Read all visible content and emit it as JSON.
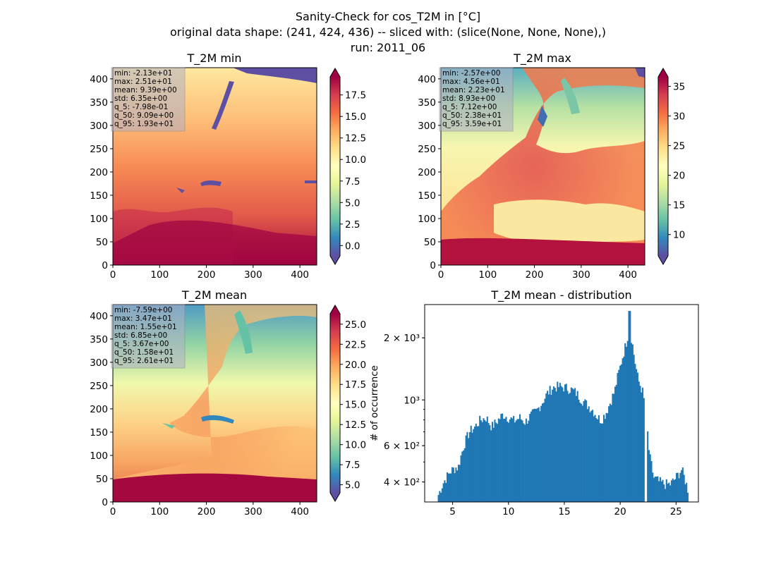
{
  "suptitle": [
    "Sanity-Check for cos_T2M in [°C]",
    "original data shape: (241, 424, 436) -- sliced with: (slice(None, None, None),)",
    "run: 2011_06"
  ],
  "chart_data": [
    {
      "type": "heatmap",
      "title": "T_2M min",
      "xlim": [
        0,
        436
      ],
      "ylim": [
        0,
        424
      ],
      "xticks": [
        0,
        100,
        200,
        300,
        400
      ],
      "yticks": [
        0,
        50,
        100,
        150,
        200,
        250,
        300,
        350,
        400
      ],
      "colormap": "Spectral_r",
      "colorbar": {
        "range": [
          -1.2,
          19.6
        ],
        "ticks": [
          "0.0",
          "2.5",
          "5.0",
          "7.5",
          "10.0",
          "12.5",
          "15.0",
          "17.5"
        ],
        "values": [
          0,
          2.5,
          5,
          7.5,
          10,
          12.5,
          15,
          17.5
        ]
      },
      "stats": [
        "min: -2.13e+01",
        "max: 2.51e+01",
        "mean: 9.39e+00",
        "std: 6.35e+00",
        "q_5: -7.98e-01",
        "q_50: 9.09e+00",
        "q_95: 1.93e+01"
      ]
    },
    {
      "type": "heatmap",
      "title": "T_2M max",
      "xlim": [
        0,
        436
      ],
      "ylim": [
        0,
        424
      ],
      "xticks": [
        0,
        100,
        200,
        300,
        400
      ],
      "yticks": [
        0,
        50,
        100,
        150,
        200,
        250,
        300,
        350,
        400
      ],
      "colormap": "Spectral_r",
      "colorbar": {
        "range": [
          6.4,
          36.6
        ],
        "ticks": [
          "10",
          "15",
          "20",
          "25",
          "30",
          "35"
        ],
        "values": [
          10,
          15,
          20,
          25,
          30,
          35
        ]
      },
      "stats": [
        "min: -2.57e+00",
        "max: 4.56e+01",
        "mean: 2.23e+01",
        "std: 8.93e+00",
        "q_5: 7.12e+00",
        "q_50: 2.38e+01",
        "q_95: 3.59e+01"
      ]
    },
    {
      "type": "heatmap",
      "title": "T_2M mean",
      "xlim": [
        0,
        436
      ],
      "ylim": [
        0,
        424
      ],
      "xticks": [
        0,
        100,
        200,
        300,
        400
      ],
      "yticks": [
        0,
        50,
        100,
        150,
        200,
        250,
        300,
        350,
        400
      ],
      "colormap": "Spectral_r",
      "colorbar": {
        "range": [
          4.0,
          26.3
        ],
        "ticks": [
          "5.0",
          "7.5",
          "10.0",
          "12.5",
          "15.0",
          "17.5",
          "20.0",
          "22.5",
          "25.0"
        ],
        "values": [
          5,
          7.5,
          10,
          12.5,
          15,
          17.5,
          20,
          22.5,
          25
        ]
      },
      "stats": [
        "min: -7.59e+00",
        "max: 3.47e+01",
        "mean: 1.55e+01",
        "std: 6.85e+00",
        "q_5: 3.67e+00",
        "q_50: 1.58e+01",
        "q_95: 2.61e+01"
      ]
    },
    {
      "type": "bar",
      "title": "T_2M mean - distribution",
      "ylabel": "# of occurrence",
      "yscale": "log",
      "xlim": [
        2.5,
        27.0
      ],
      "ylim": [
        320,
        2900
      ],
      "xticks": [
        5,
        10,
        15,
        20,
        25
      ],
      "yticks": [
        {
          "value": 400,
          "label": "4 × 10²"
        },
        {
          "value": 600,
          "label": "6 × 10²"
        },
        {
          "value": 1000,
          "label": "10³"
        },
        {
          "value": 2000,
          "label": "2 × 10³"
        }
      ],
      "color": "#1f77b4",
      "bins": {
        "start": 3.67,
        "end": 26.1,
        "count": 200
      },
      "anchors": [
        [
          3.67,
          340
        ],
        [
          4.2,
          400
        ],
        [
          4.8,
          450
        ],
        [
          5.3,
          470
        ],
        [
          5.5,
          470
        ],
        [
          6.0,
          600
        ],
        [
          6.5,
          700
        ],
        [
          7.0,
          740
        ],
        [
          7.5,
          800
        ],
        [
          8.0,
          820
        ],
        [
          8.5,
          740
        ],
        [
          9.0,
          790
        ],
        [
          9.5,
          850
        ],
        [
          10.0,
          820
        ],
        [
          10.5,
          790
        ],
        [
          11.0,
          820
        ],
        [
          11.5,
          780
        ],
        [
          12.0,
          840
        ],
        [
          12.5,
          880
        ],
        [
          13.0,
          970
        ],
        [
          13.5,
          1080
        ],
        [
          14.0,
          1150
        ],
        [
          14.5,
          1160
        ],
        [
          15.0,
          1150
        ],
        [
          15.5,
          1130
        ],
        [
          16.0,
          1090
        ],
        [
          16.5,
          1010
        ],
        [
          17.0,
          950
        ],
        [
          17.5,
          900
        ],
        [
          18.0,
          820
        ],
        [
          18.3,
          800
        ],
        [
          18.7,
          860
        ],
        [
          19.0,
          940
        ],
        [
          19.5,
          1100
        ],
        [
          20.0,
          1450
        ],
        [
          20.5,
          1850
        ],
        [
          20.8,
          2200
        ],
        [
          21.0,
          2000
        ],
        [
          21.3,
          1550
        ],
        [
          21.6,
          1250
        ],
        [
          22.0,
          1100
        ],
        [
          22.3,
          850
        ],
        [
          22.6,
          540
        ],
        [
          23.0,
          420
        ],
        [
          23.5,
          400
        ],
        [
          24.0,
          390
        ],
        [
          24.5,
          390
        ],
        [
          25.0,
          420
        ],
        [
          25.5,
          460
        ],
        [
          26.1,
          360
        ]
      ]
    }
  ]
}
